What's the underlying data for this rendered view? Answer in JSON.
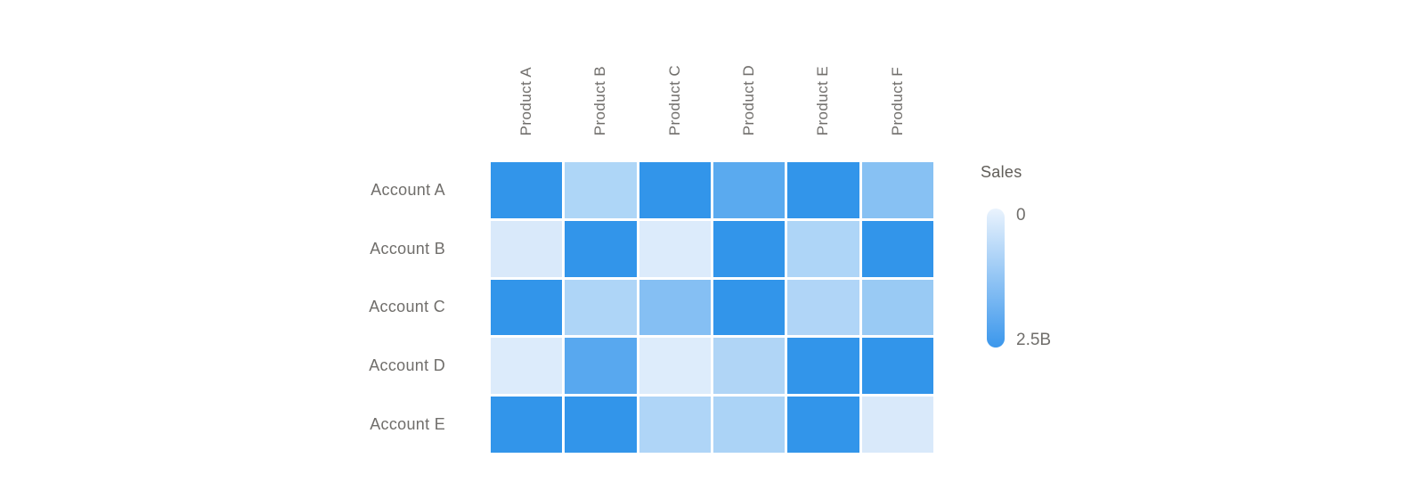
{
  "chart_data": {
    "type": "heatmap",
    "rows": [
      "Account A",
      "Account B",
      "Account C",
      "Account D",
      "Account E"
    ],
    "columns": [
      "Product A",
      "Product B",
      "Product C",
      "Product D",
      "Product E",
      "Product F"
    ],
    "legend": {
      "title": "Sales",
      "min_label": "0",
      "max_label": "2.5B",
      "min_color": "#EAF3FD",
      "max_color": "#3B97EC"
    },
    "value_range_billions": [
      0,
      2.5
    ],
    "cell_colors": [
      [
        "#3295EA",
        "#AED6F7",
        "#3295EA",
        "#5AAAEF",
        "#3295EA",
        "#87C1F3"
      ],
      [
        "#D9E9FA",
        "#3295EA",
        "#DCEBFB",
        "#3295EA",
        "#AED5F7",
        "#3295EA"
      ],
      [
        "#3295EA",
        "#AED5F7",
        "#85BFF3",
        "#3295EA",
        "#B0D5F7",
        "#99CAF4"
      ],
      [
        "#DCEBFB",
        "#58A8EF",
        "#DDECFB",
        "#B0D5F6",
        "#3295EA",
        "#3295EA"
      ],
      [
        "#3295EA",
        "#3295EA",
        "#AFD5F7",
        "#ABD3F6",
        "#3295EA",
        "#D9E9FA"
      ]
    ],
    "values_estimate_billions": [
      [
        2.4,
        0.75,
        2.4,
        1.95,
        2.4,
        1.3
      ],
      [
        0.15,
        2.4,
        0.15,
        2.4,
        0.75,
        2.4
      ],
      [
        2.4,
        0.75,
        1.35,
        2.4,
        0.75,
        1.05
      ],
      [
        0.15,
        1.95,
        0.15,
        0.8,
        2.4,
        2.4
      ],
      [
        2.4,
        2.4,
        0.75,
        0.8,
        2.4,
        0.15
      ]
    ],
    "background_color": "#FFFFFF",
    "label_color": "#706E6B"
  }
}
